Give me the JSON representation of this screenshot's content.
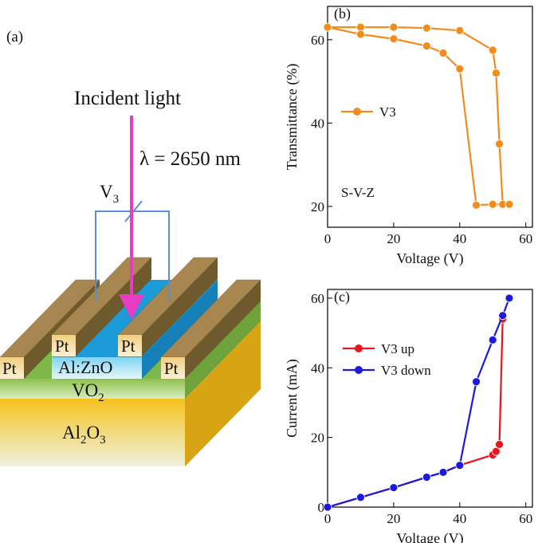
{
  "diagram": {
    "panel_label": "(a)",
    "incident": "Incident light",
    "wavelength": "λ = 2650 nm",
    "voltage": [
      "V",
      "3"
    ],
    "pt": [
      "Pt",
      "Pt",
      "Pt",
      "Pt"
    ],
    "azo": "Al:ZnO",
    "vo2": [
      "VO",
      "2"
    ],
    "al2o3": [
      "Al",
      "2",
      "O",
      "3"
    ]
  },
  "chart_data": [
    {
      "type": "line",
      "panel_label": "(b)",
      "xlabel": "Voltage (V)",
      "ylabel": "Transmittance (%)",
      "annotation": "S-V-Z",
      "xlim": [
        0,
        62
      ],
      "ylim": [
        15,
        68
      ],
      "xticks": [
        0,
        20,
        40,
        60
      ],
      "yticks": [
        20,
        40,
        60
      ],
      "series": [
        {
          "name": "V3",
          "color": "#f28c1c",
          "x": [
            0,
            10,
            20,
            30,
            40,
            50,
            51,
            52,
            53,
            55,
            50,
            45,
            40,
            35,
            30,
            20,
            10,
            0
          ],
          "values": [
            63,
            63,
            63,
            62.8,
            62.2,
            57.5,
            52,
            35,
            20.5,
            20.5,
            20.5,
            20.3,
            53,
            56.8,
            58.5,
            60.2,
            61.3,
            63
          ]
        }
      ]
    },
    {
      "type": "line",
      "panel_label": "(c)",
      "xlabel": "Voltage (V)",
      "ylabel": "Current (mA)",
      "xlim": [
        0,
        62
      ],
      "ylim": [
        0,
        62.5
      ],
      "xticks": [
        0,
        20,
        40,
        60
      ],
      "yticks": [
        0,
        20,
        40,
        60
      ],
      "series": [
        {
          "name": "V3 up",
          "color": "#e8161c",
          "x": [
            0,
            10,
            20,
            30,
            35,
            40,
            50,
            51,
            52,
            53
          ],
          "values": [
            0,
            2.8,
            5.6,
            8.6,
            10,
            12,
            15,
            16,
            18,
            54
          ]
        },
        {
          "name": "V3 down",
          "color": "#1a1ae0",
          "x": [
            55,
            53,
            50,
            45,
            40,
            35,
            30,
            20,
            10,
            0
          ],
          "values": [
            60,
            55,
            48,
            36,
            12,
            10,
            8.6,
            5.6,
            2.8,
            0
          ]
        }
      ]
    }
  ]
}
